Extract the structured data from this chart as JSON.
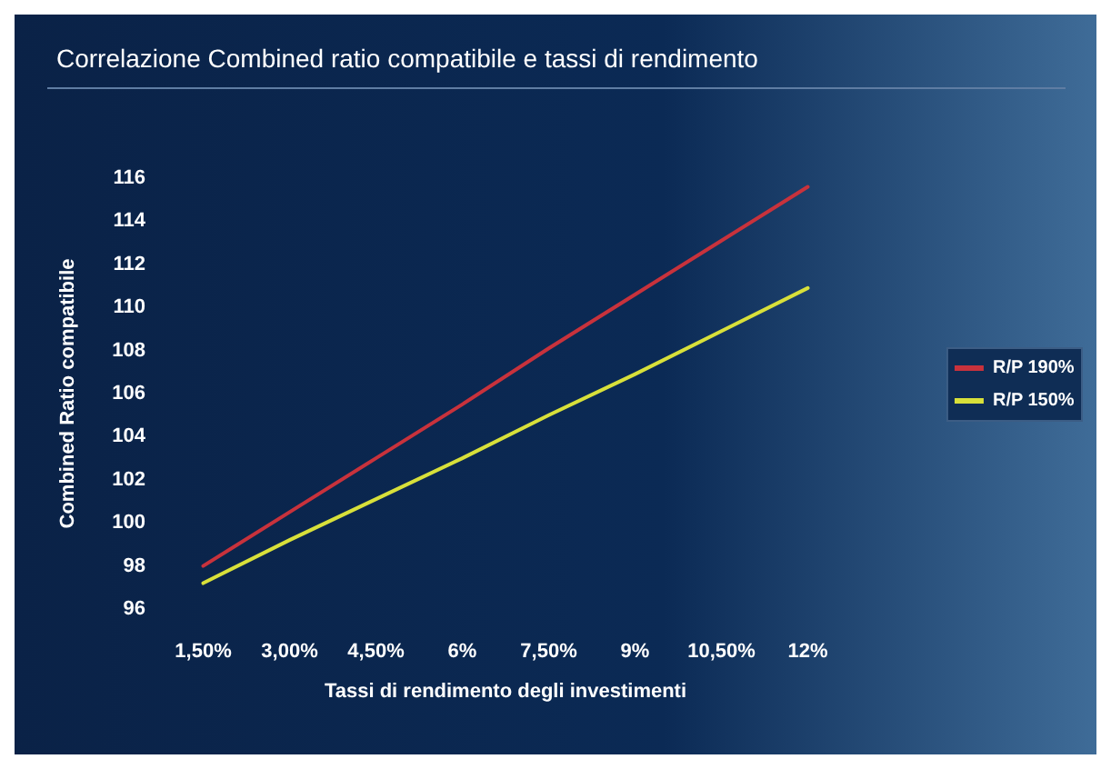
{
  "chart_data": {
    "type": "line",
    "title": "Correlazione Combined ratio compatibile e tassi di rendimento",
    "xlabel": "Tassi di rendimento degli investimenti",
    "ylabel": "Combined Ratio compatibile",
    "categories": [
      "1,50%",
      "3,00%",
      "4,50%",
      "6%",
      "7,50%",
      "9%",
      "10,50%",
      "12%"
    ],
    "series": [
      {
        "name": "R/P 190%",
        "color": "#c8323c",
        "values": [
          98.0,
          100.5,
          103.0,
          105.5,
          108.1,
          110.6,
          113.1,
          115.6
        ]
      },
      {
        "name": "R/P 150%",
        "color": "#d8e03a",
        "values": [
          97.2,
          99.2,
          101.1,
          103.0,
          105.0,
          106.9,
          108.9,
          110.9
        ]
      }
    ],
    "ylim": [
      96,
      116
    ],
    "yticks": [
      96,
      98,
      100,
      102,
      104,
      106,
      108,
      110,
      112,
      114,
      116
    ],
    "grid": false,
    "legend": "right",
    "marker": "none",
    "line_style": "solid"
  }
}
